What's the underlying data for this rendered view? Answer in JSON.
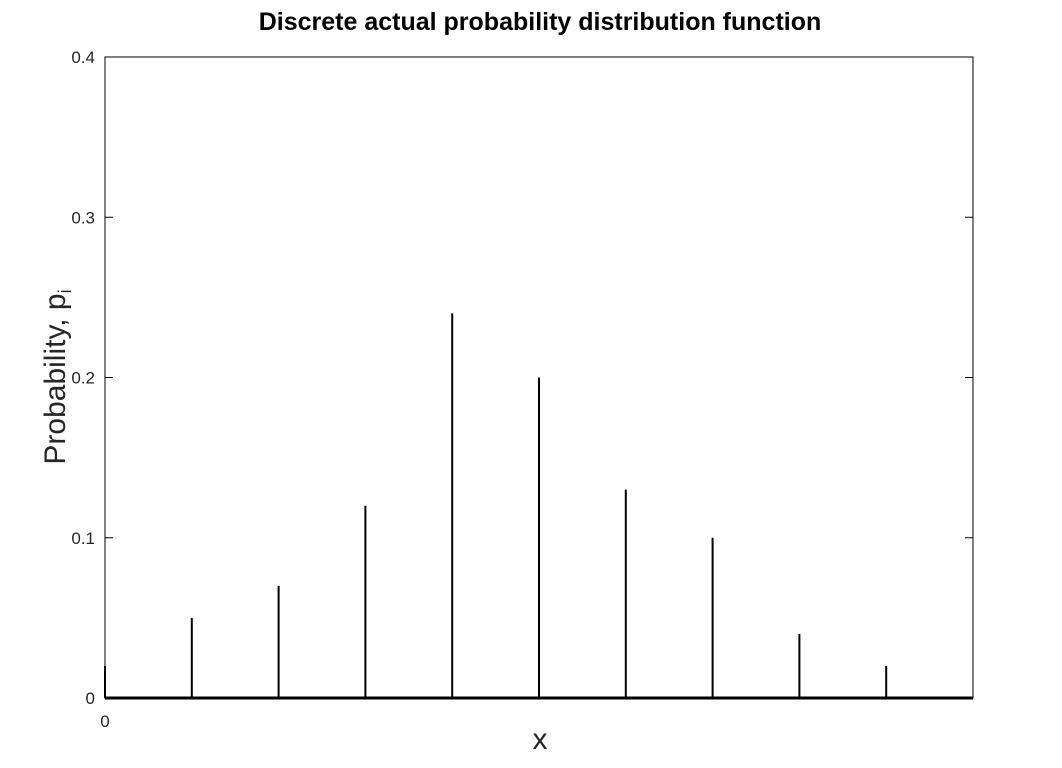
{
  "chart_data": {
    "type": "stem",
    "title": "Discrete actual probability distribution function",
    "xlabel": "x",
    "ylabel": "Probability, p",
    "ylabel_subscript": "i",
    "xlim": [
      0,
      10
    ],
    "ylim": [
      0,
      0.4
    ],
    "x_ticks": [
      0
    ],
    "x_tick_labels": [
      "0"
    ],
    "y_ticks": [
      0,
      0.1,
      0.2,
      0.3,
      0.4
    ],
    "y_tick_labels": [
      "0",
      "0.1",
      "0.2",
      "0.3",
      "0.4"
    ],
    "grid": false,
    "box": true,
    "series": [
      {
        "x": [
          0,
          1,
          2,
          3,
          4,
          5,
          6,
          7,
          8,
          9,
          10
        ],
        "values": [
          0.02,
          0.05,
          0.07,
          0.12,
          0.24,
          0.2,
          0.13,
          0.1,
          0.04,
          0.02,
          0
        ],
        "color": "#000000"
      }
    ]
  }
}
